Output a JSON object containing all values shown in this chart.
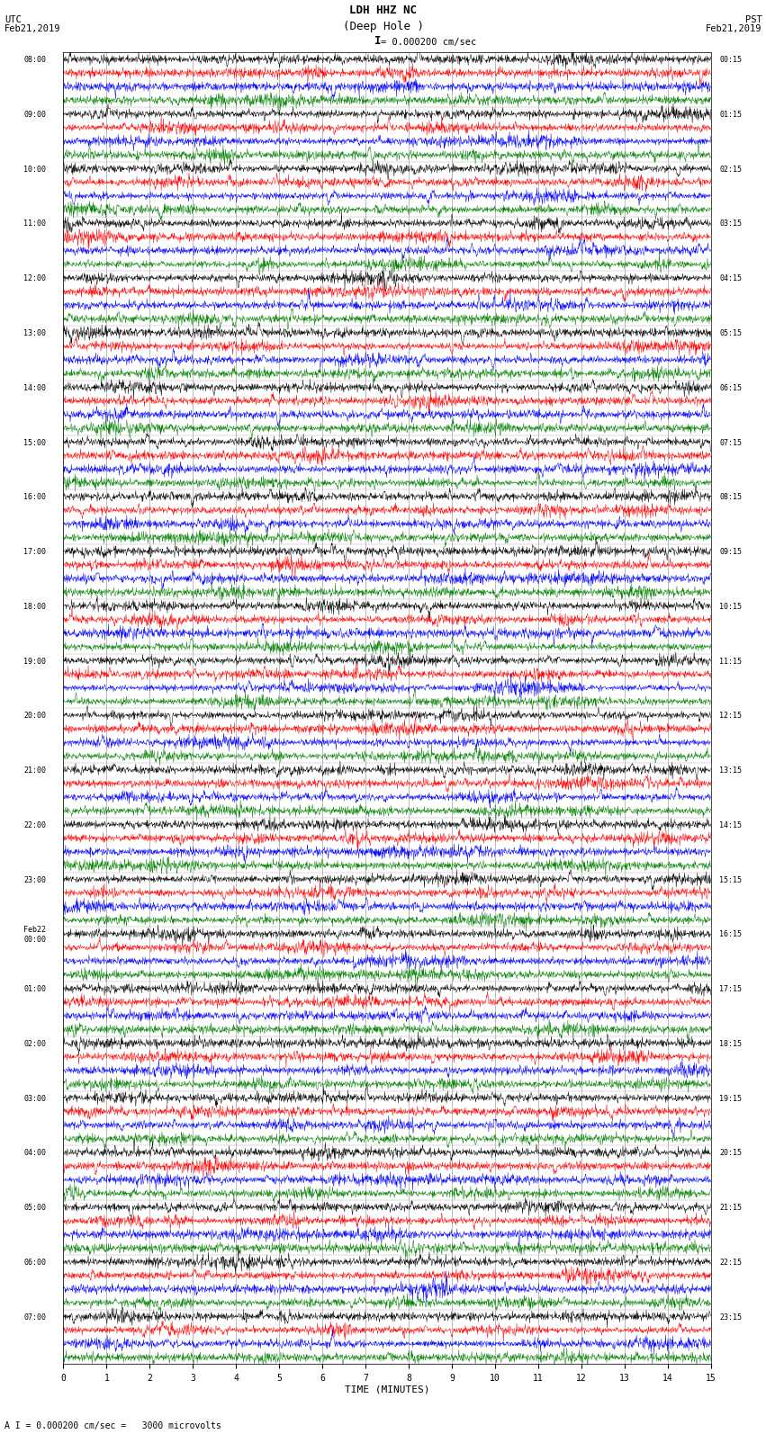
{
  "title_line1": "LDH HHZ NC",
  "title_line2": "(Deep Hole )",
  "scale_label": "= 0.000200 cm/sec",
  "scale_bar": "I",
  "utc_label": "UTC\nFeb21,2019",
  "pst_label": "PST\nFeb21,2019",
  "xlabel": "TIME (MINUTES)",
  "bottom_note": "A I = 0.000200 cm/sec =   3000 microvolts",
  "colors": [
    "black",
    "red",
    "blue",
    "green"
  ],
  "n_channels": 4,
  "minutes": 15,
  "background": "white",
  "figwidth": 8.5,
  "figheight": 16.13,
  "n_hours": 24,
  "left_labels": [
    "08:00",
    "09:00",
    "10:00",
    "11:00",
    "12:00",
    "13:00",
    "14:00",
    "15:00",
    "16:00",
    "17:00",
    "18:00",
    "19:00",
    "20:00",
    "21:00",
    "22:00",
    "23:00",
    "Feb22\n00:00",
    "01:00",
    "02:00",
    "03:00",
    "04:00",
    "05:00",
    "06:00",
    "07:00"
  ],
  "right_labels": [
    "00:15",
    "01:15",
    "02:15",
    "03:15",
    "04:15",
    "05:15",
    "06:15",
    "07:15",
    "08:15",
    "09:15",
    "10:15",
    "11:15",
    "12:15",
    "13:15",
    "14:15",
    "15:15",
    "16:15",
    "17:15",
    "18:15",
    "19:15",
    "20:15",
    "21:15",
    "22:15",
    "23:15"
  ]
}
